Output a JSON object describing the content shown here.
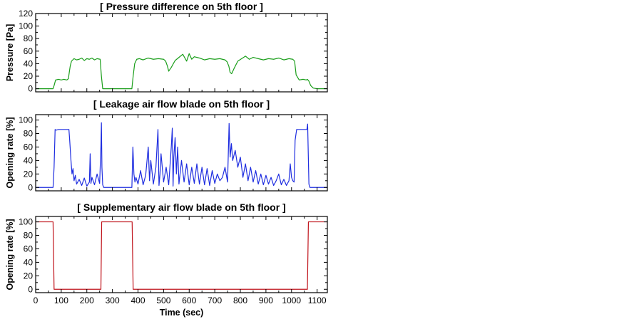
{
  "chart_data": [
    {
      "type": "line",
      "title": "[ Pressure difference on 5th floor ]",
      "ylabel": "Pressure [Pa]",
      "xlabel": "",
      "xlim": [
        0,
        1140
      ],
      "ylim": [
        -5,
        120
      ],
      "yticks": [
        0,
        20,
        40,
        60,
        80,
        100,
        120
      ],
      "xticks": [
        0,
        100,
        200,
        300,
        400,
        500,
        600,
        700,
        800,
        900,
        1000,
        1100
      ],
      "show_x_tick_labels": false,
      "grid": false,
      "series": [
        {
          "color": "#1a9e1a",
          "x": [
            0,
            68,
            72,
            78,
            90,
            100,
            110,
            122,
            128,
            131,
            135,
            140,
            150,
            160,
            170,
            180,
            190,
            200,
            210,
            220,
            230,
            240,
            252,
            257,
            262,
            270,
            300,
            350,
            376,
            381,
            387,
            395,
            405,
            420,
            440,
            460,
            480,
            500,
            508,
            515,
            520,
            530,
            545,
            560,
            575,
            590,
            600,
            610,
            620,
            640,
            660,
            680,
            700,
            720,
            740,
            748,
            755,
            760,
            766,
            775,
            790,
            805,
            820,
            835,
            850,
            870,
            890,
            910,
            930,
            950,
            970,
            990,
            1005,
            1012,
            1018,
            1030,
            1045,
            1058,
            1062,
            1068,
            1075,
            1085,
            1100,
            1120,
            1140
          ],
          "y": [
            0,
            0,
            5,
            14,
            15,
            14,
            15,
            14,
            16,
            25,
            36,
            44,
            48,
            46,
            47,
            49,
            45,
            48,
            47,
            49,
            46,
            48,
            47,
            20,
            0,
            0,
            0,
            0,
            0,
            20,
            40,
            47,
            48,
            46,
            49,
            47,
            48,
            47,
            44,
            36,
            28,
            34,
            45,
            50,
            55,
            44,
            56,
            47,
            51,
            49,
            46,
            48,
            47,
            48,
            46,
            43,
            36,
            26,
            24,
            32,
            44,
            48,
            52,
            47,
            50,
            48,
            46,
            48,
            47,
            49,
            46,
            48,
            47,
            44,
            22,
            14,
            15,
            14,
            15,
            12,
            5,
            1,
            0,
            0,
            0
          ]
        }
      ]
    },
    {
      "type": "line",
      "title": "[ Leakage air flow blade on 5th floor ]",
      "ylabel": "Opening rate [%]",
      "xlabel": "",
      "xlim": [
        0,
        1140
      ],
      "ylim": [
        -5,
        108
      ],
      "yticks": [
        0,
        20,
        40,
        60,
        80,
        100
      ],
      "xticks": [
        0,
        100,
        200,
        300,
        400,
        500,
        600,
        700,
        800,
        900,
        1000,
        1100
      ],
      "show_x_tick_labels": false,
      "grid": false,
      "series": [
        {
          "color": "#1f2ee0",
          "x": [
            0,
            68,
            72,
            76,
            80,
            90,
            120,
            130,
            133,
            138,
            142,
            146,
            150,
            155,
            160,
            170,
            180,
            190,
            200,
            210,
            213,
            216,
            220,
            230,
            240,
            250,
            255,
            257,
            259,
            262,
            266,
            300,
            350,
            376,
            380,
            384,
            388,
            392,
            400,
            410,
            420,
            430,
            440,
            445,
            450,
            460,
            470,
            478,
            482,
            486,
            490,
            500,
            510,
            520,
            530,
            534,
            537,
            540,
            545,
            550,
            555,
            560,
            570,
            580,
            590,
            600,
            610,
            620,
            630,
            640,
            650,
            660,
            670,
            680,
            690,
            700,
            710,
            720,
            730,
            740,
            750,
            756,
            760,
            765,
            770,
            780,
            790,
            800,
            810,
            820,
            830,
            840,
            850,
            860,
            870,
            880,
            890,
            900,
            910,
            920,
            930,
            940,
            950,
            960,
            970,
            980,
            990,
            995,
            1000,
            1005,
            1010,
            1014,
            1020,
            1040,
            1060,
            1063,
            1066,
            1068,
            1072,
            1100,
            1140
          ],
          "y": [
            0,
            0,
            30,
            86,
            85,
            86,
            86,
            86,
            70,
            40,
            20,
            28,
            10,
            18,
            5,
            12,
            3,
            14,
            2,
            8,
            50,
            6,
            15,
            4,
            20,
            6,
            60,
            96,
            30,
            4,
            0,
            0,
            0,
            0,
            60,
            20,
            8,
            15,
            5,
            25,
            4,
            18,
            60,
            10,
            40,
            5,
            30,
            86,
            3,
            20,
            50,
            8,
            30,
            4,
            60,
            88,
            2,
            45,
            74,
            20,
            60,
            5,
            40,
            8,
            35,
            4,
            30,
            6,
            35,
            5,
            30,
            4,
            28,
            3,
            25,
            6,
            20,
            10,
            15,
            30,
            8,
            95,
            45,
            65,
            40,
            55,
            30,
            45,
            15,
            35,
            10,
            30,
            8,
            25,
            5,
            20,
            4,
            18,
            5,
            15,
            3,
            10,
            20,
            4,
            12,
            3,
            10,
            35,
            15,
            10,
            8,
            70,
            86,
            86,
            86,
            94,
            40,
            5,
            0,
            0,
            0
          ]
        }
      ]
    },
    {
      "type": "line",
      "title": "[ Supplementary air flow blade on 5th floor ]",
      "ylabel": "Opening rate [%]",
      "xlabel": "Time (sec)",
      "xlim": [
        0,
        1140
      ],
      "ylim": [
        -5,
        108
      ],
      "yticks": [
        0,
        20,
        40,
        60,
        80,
        100
      ],
      "xticks": [
        0,
        100,
        200,
        300,
        400,
        500,
        600,
        700,
        800,
        900,
        1000,
        1100
      ],
      "show_x_tick_labels": true,
      "grid": false,
      "series": [
        {
          "color": "#c0141c",
          "x": [
            0,
            68,
            72,
            255,
            258,
            377,
            381,
            1062,
            1066,
            1140
          ],
          "y": [
            100,
            100,
            0,
            0,
            100,
            100,
            0,
            0,
            100,
            100
          ]
        }
      ]
    }
  ]
}
